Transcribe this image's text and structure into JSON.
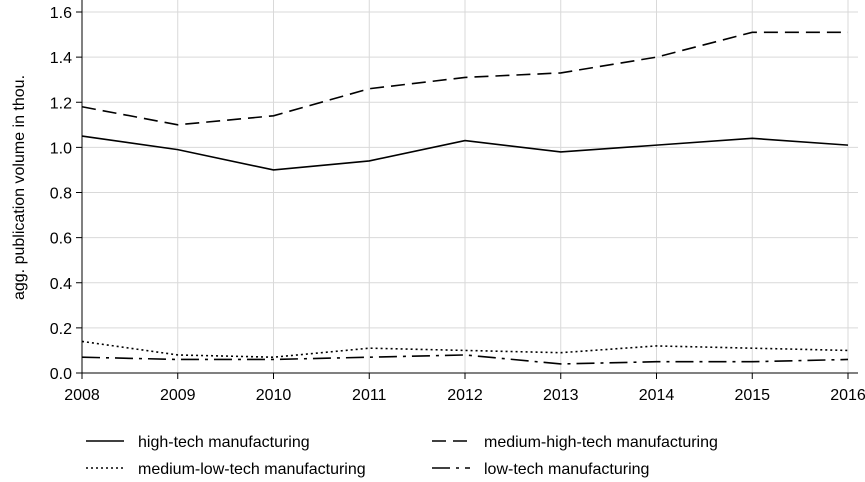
{
  "chart_data": {
    "type": "line",
    "title": "",
    "xlabel": "",
    "ylabel": "agg. publication volume in thou.",
    "x": [
      2008,
      2009,
      2010,
      2011,
      2012,
      2013,
      2014,
      2015,
      2016
    ],
    "xlim": [
      2008,
      2016
    ],
    "ylim": [
      0.0,
      1.6
    ],
    "yticks": [
      "0.0",
      "0.2",
      "0.4",
      "0.6",
      "0.8",
      "1.0",
      "1.2",
      "1.4",
      "1.6"
    ],
    "xticks": [
      "2008",
      "2009",
      "2010",
      "2011",
      "2012",
      "2013",
      "2014",
      "2015",
      "2016"
    ],
    "grid": true,
    "legend_position": "bottom",
    "series": [
      {
        "name": "high-tech manufacturing",
        "style": "solid",
        "values": [
          1.05,
          0.99,
          0.9,
          0.94,
          1.03,
          0.98,
          1.01,
          1.04,
          1.01
        ]
      },
      {
        "name": "medium-high-tech manufacturing",
        "style": "dashed",
        "values": [
          1.18,
          1.1,
          1.14,
          1.26,
          1.31,
          1.33,
          1.4,
          1.51,
          1.51
        ]
      },
      {
        "name": "medium-low-tech manufacturing",
        "style": "dotted",
        "values": [
          0.14,
          0.08,
          0.07,
          0.11,
          0.1,
          0.09,
          0.12,
          0.11,
          0.1
        ]
      },
      {
        "name": "low-tech manufacturing",
        "style": "dash-dot",
        "values": [
          0.07,
          0.06,
          0.06,
          0.07,
          0.08,
          0.04,
          0.05,
          0.05,
          0.06
        ]
      }
    ]
  }
}
